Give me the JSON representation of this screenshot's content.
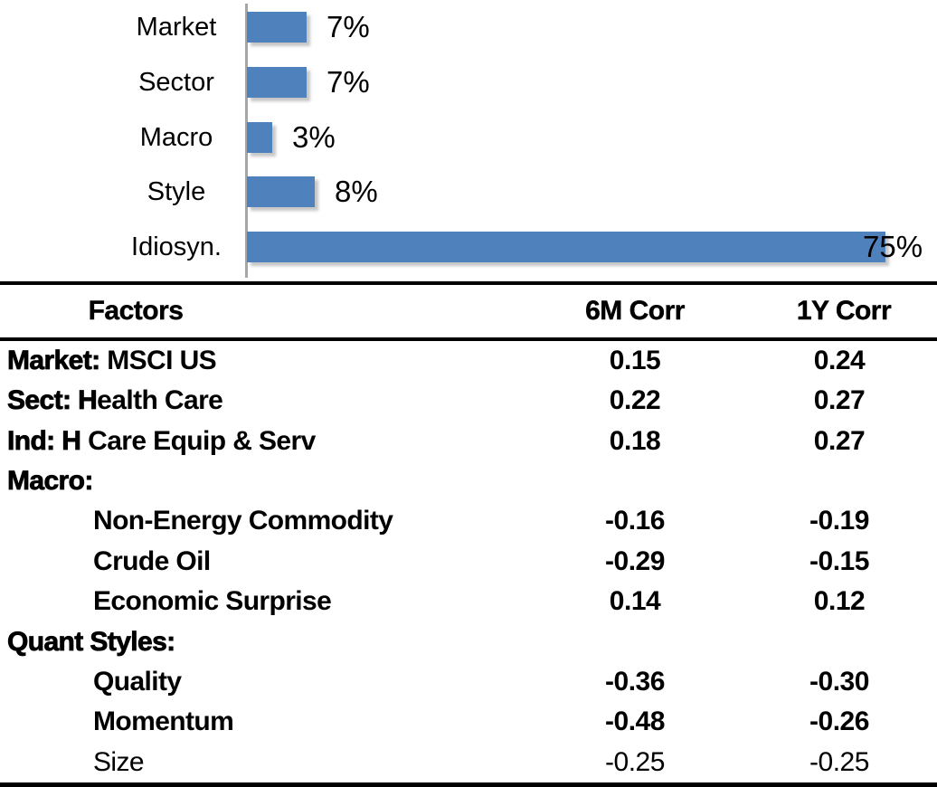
{
  "chart_data": [
    {
      "type": "bar",
      "orientation": "horizontal",
      "title": "",
      "categories": [
        "Market",
        "Sector",
        "Macro",
        "Style",
        "Idiosyn."
      ],
      "values": [
        7,
        7,
        3,
        8,
        75
      ],
      "data_labels": [
        "7%",
        "7%",
        "3%",
        "8%",
        "75%"
      ],
      "xlabel": "",
      "ylabel": "",
      "xlim": [
        0,
        80
      ],
      "grid": false,
      "legend": false,
      "bar_color": "#4f81bd",
      "axis_color": "#a6a6a6",
      "label_color": "#000000"
    },
    {
      "type": "table",
      "columns": [
        "Factors",
        "6M Corr",
        "1Y Corr"
      ],
      "rows": [
        {
          "prefix": "Market:",
          "rest": " MSCI US",
          "indent": false,
          "values": [
            "0.15",
            "0.24"
          ],
          "light": false
        },
        {
          "prefix": "Sect: H",
          "rest": "ealth Care",
          "indent": false,
          "values": [
            "0.22",
            "0.27"
          ],
          "light": false
        },
        {
          "prefix": "Ind: H",
          "rest": " Care Equip & Serv",
          "indent": false,
          "values": [
            "0.18",
            "0.27"
          ],
          "light": false
        },
        {
          "prefix": "Macro:",
          "rest": "",
          "indent": false,
          "values": [
            "",
            ""
          ],
          "light": false
        },
        {
          "prefix": "",
          "rest": "Non-Energy Commodity",
          "indent": true,
          "values": [
            "-0.16",
            "-0.19"
          ],
          "light": false
        },
        {
          "prefix": "",
          "rest": "Crude Oil",
          "indent": true,
          "values": [
            "-0.29",
            "-0.15"
          ],
          "light": false
        },
        {
          "prefix": "",
          "rest": "Economic Surprise",
          "indent": true,
          "values": [
            "0.14",
            "0.12"
          ],
          "light": false
        },
        {
          "prefix": "Quant Styles:",
          "rest": "",
          "indent": false,
          "values": [
            "",
            ""
          ],
          "light": false
        },
        {
          "prefix": "",
          "rest": "Quality",
          "indent": true,
          "values": [
            "-0.36",
            "-0.30"
          ],
          "light": false
        },
        {
          "prefix": "",
          "rest": "Momentum",
          "indent": true,
          "values": [
            "-0.48",
            "-0.26"
          ],
          "light": false
        },
        {
          "prefix": "",
          "rest": "Size",
          "indent": true,
          "values": [
            "-0.25",
            "-0.25"
          ],
          "light": true
        }
      ]
    }
  ]
}
